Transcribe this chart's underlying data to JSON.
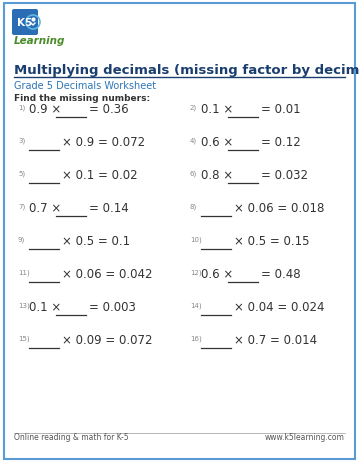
{
  "title": "Multiplying decimals (missing factor by decimals)",
  "subtitle": "Grade 5 Decimals Worksheet",
  "instruction": "Find the missing numbers:",
  "footer_left": "Online reading & math for K-5",
  "footer_right": "www.k5learning.com",
  "bg_color": "#ffffff",
  "border_color": "#5b9bd5",
  "title_color": "#1a3e6e",
  "subtitle_color": "#2e75b6",
  "instruction_color": "#333333",
  "text_color": "#333333",
  "num_color": "#888888",
  "problems": [
    {
      "num": "1)",
      "left": "0.9 ×",
      "right": "= 0.36",
      "blank_pos": "middle"
    },
    {
      "num": "2)",
      "left": "0.1 ×",
      "right": "= 0.01",
      "blank_pos": "middle"
    },
    {
      "num": "3)",
      "left": "",
      "right": "× 0.9 = 0.072",
      "blank_pos": "left"
    },
    {
      "num": "4)",
      "left": "0.6 ×",
      "right": "= 0.12",
      "blank_pos": "middle"
    },
    {
      "num": "5)",
      "left": "",
      "right": "× 0.1 = 0.02",
      "blank_pos": "left"
    },
    {
      "num": "6)",
      "left": "0.8 ×",
      "right": "= 0.032",
      "blank_pos": "middle"
    },
    {
      "num": "7)",
      "left": "0.7 ×",
      "right": "= 0.14",
      "blank_pos": "middle"
    },
    {
      "num": "8)",
      "left": "",
      "right": "× 0.06 = 0.018",
      "blank_pos": "left"
    },
    {
      "num": "9)",
      "left": "",
      "right": "× 0.5 = 0.1",
      "blank_pos": "left"
    },
    {
      "num": "10)",
      "left": "",
      "right": "× 0.5 = 0.15",
      "blank_pos": "left"
    },
    {
      "num": "11)",
      "left": "",
      "right": "× 0.06 = 0.042",
      "blank_pos": "left"
    },
    {
      "num": "12)",
      "left": "0.6 ×",
      "right": "= 0.48",
      "blank_pos": "middle"
    },
    {
      "num": "13)",
      "left": "0.1 ×",
      "right": "= 0.003",
      "blank_pos": "middle"
    },
    {
      "num": "14)",
      "left": "",
      "right": "× 0.04 = 0.024",
      "blank_pos": "left"
    },
    {
      "num": "15)",
      "left": "",
      "right": "× 0.09 = 0.072",
      "blank_pos": "left"
    },
    {
      "num": "16)",
      "left": "",
      "right": "× 0.7 = 0.014",
      "blank_pos": "left"
    }
  ],
  "logo_k5_color": "#4a8c2a",
  "logo_k5_bg": "#2e75b6",
  "logo_learning_color": "#4a8c2a"
}
